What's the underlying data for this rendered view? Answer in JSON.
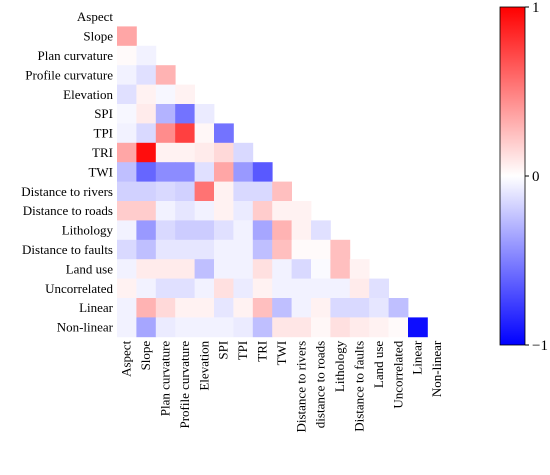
{
  "chart_data": {
    "type": "heatmap",
    "subtype": "lower-triangular correlation matrix",
    "row_labels": [
      "Aspect",
      "Slope",
      "Plan curvature",
      "Profile curvature",
      "Elevation",
      "SPI",
      "TPI",
      "TRI",
      "TWI",
      "Distance to rivers",
      "Distance to roads",
      "Lithology",
      "Distance to faults",
      "Land use",
      "Uncorrelated",
      "Linear",
      "Non-linear"
    ],
    "column_labels": [
      "Aspect",
      "Slope",
      "Plan curvature",
      "Profile curvature",
      "Elevation",
      "SPI",
      "TPI",
      "TRI",
      "TWI",
      "Distance to rivers",
      "distance to roads",
      "Lithology",
      "Distance to faults",
      "Land use",
      "Uncorrelated",
      "Linear",
      "Non-linear"
    ],
    "matrix": [
      [],
      [
        0.35
      ],
      [
        0.02,
        -0.05
      ],
      [
        -0.05,
        -0.12,
        0.3
      ],
      [
        -0.12,
        0.05,
        -0.03,
        0.05
      ],
      [
        -0.03,
        0.08,
        -0.3,
        -0.55,
        -0.08
      ],
      [
        -0.05,
        -0.15,
        0.45,
        0.75,
        0.03,
        -0.55
      ],
      [
        0.35,
        0.95,
        0.05,
        0.05,
        0.08,
        0.15,
        -0.15
      ],
      [
        -0.25,
        -0.6,
        -0.45,
        -0.45,
        -0.12,
        0.35,
        -0.4,
        -0.65
      ],
      [
        -0.18,
        -0.18,
        -0.15,
        -0.18,
        0.55,
        0.05,
        -0.15,
        -0.15,
        0.25
      ],
      [
        0.2,
        0.2,
        -0.05,
        -0.1,
        -0.05,
        0.05,
        -0.08,
        0.2,
        0.05,
        0.05
      ],
      [
        -0.05,
        -0.4,
        -0.15,
        -0.2,
        -0.2,
        -0.12,
        -0.05,
        -0.35,
        0.3,
        0.05,
        -0.12
      ],
      [
        -0.15,
        -0.25,
        -0.1,
        -0.1,
        -0.1,
        -0.05,
        -0.05,
        -0.25,
        0.25,
        0.02,
        0.02,
        0.25
      ],
      [
        -0.05,
        0.08,
        0.08,
        0.08,
        -0.25,
        -0.05,
        -0.05,
        0.12,
        -0.05,
        -0.15,
        -0.02,
        0.25,
        0.05
      ],
      [
        0.05,
        -0.05,
        -0.12,
        -0.12,
        -0.05,
        0.12,
        -0.08,
        0.05,
        -0.05,
        -0.05,
        -0.05,
        -0.05,
        0.08,
        -0.12
      ],
      [
        -0.05,
        0.3,
        0.15,
        0.05,
        0.05,
        -0.1,
        0.05,
        0.25,
        -0.25,
        -0.05,
        0.05,
        -0.15,
        -0.15,
        -0.1,
        -0.25
      ],
      [
        -0.05,
        -0.35,
        -0.08,
        -0.05,
        -0.05,
        -0.05,
        -0.08,
        -0.25,
        0.1,
        0.1,
        0.03,
        0.12,
        0.08,
        0.05,
        0.02,
        -0.95
      ]
    ],
    "colorbar": {
      "range": [
        -1,
        1
      ],
      "ticks": [
        1,
        0,
        -1
      ],
      "tick_labels": [
        "1",
        "0",
        "−1"
      ],
      "colors": {
        "negative": "#0000ff",
        "zero": "#ffffff",
        "positive": "#ff0000"
      },
      "placement": "right"
    },
    "title": "",
    "xlabel": "",
    "ylabel": ""
  }
}
